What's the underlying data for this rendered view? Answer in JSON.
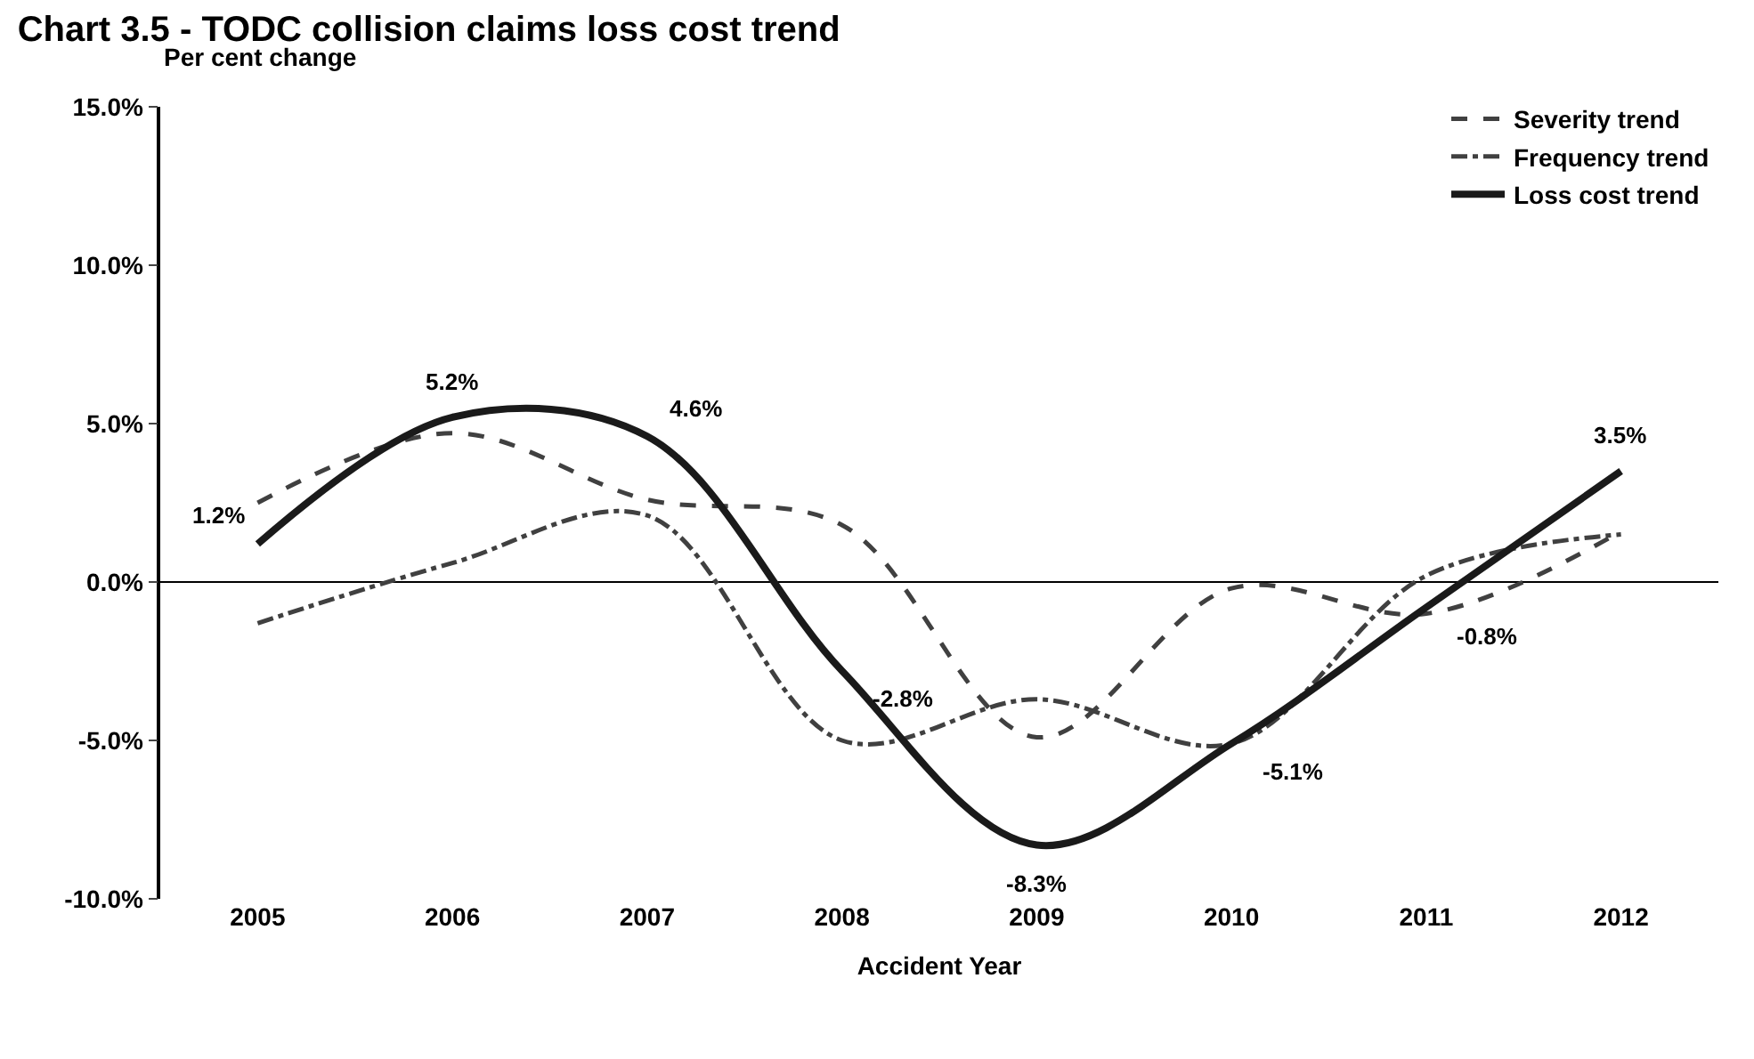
{
  "chart_data": {
    "type": "line",
    "title": "Chart 3.5 - TODC collision claims loss cost trend",
    "ylabel": "Per cent change",
    "xlabel": "Accident Year",
    "categories": [
      "2005",
      "2006",
      "2007",
      "2008",
      "2009",
      "2010",
      "2011",
      "2012"
    ],
    "ylim": [
      -10,
      15
    ],
    "yticks": [
      {
        "value": -10,
        "label": "-10.0%"
      },
      {
        "value": -5,
        "label": "-5.0%"
      },
      {
        "value": 0,
        "label": "0.0%"
      },
      {
        "value": 5,
        "label": "5.0%"
      },
      {
        "value": 10,
        "label": "10.0%"
      },
      {
        "value": 15,
        "label": "15.0%"
      }
    ],
    "grid": false,
    "legend": "top right",
    "ref_lines": [
      {
        "axis": "y",
        "value": 0,
        "color": "#000000"
      }
    ],
    "series": [
      {
        "name": "Severity trend",
        "color": "#404040",
        "line_style": "dashed",
        "values": [
          2.5,
          4.7,
          2.6,
          1.8,
          -4.9,
          -0.2,
          -1.0,
          1.6
        ]
      },
      {
        "name": "Frequency trend",
        "color": "#404040",
        "line_style": "dashdot",
        "values": [
          -1.3,
          0.6,
          2.1,
          -5.0,
          -3.7,
          -5.1,
          0.2,
          1.5
        ]
      },
      {
        "name": "Loss cost trend",
        "color": "#1a1a1a",
        "line_style": "solid",
        "values": [
          1.2,
          5.2,
          4.6,
          -2.8,
          -8.3,
          -5.1,
          -0.8,
          3.5
        ],
        "value_labels": [
          "1.2%",
          "5.2%",
          "4.6%",
          "-2.8%",
          "-8.3%",
          "-5.1%",
          "-0.8%",
          "3.5%"
        ]
      }
    ]
  }
}
